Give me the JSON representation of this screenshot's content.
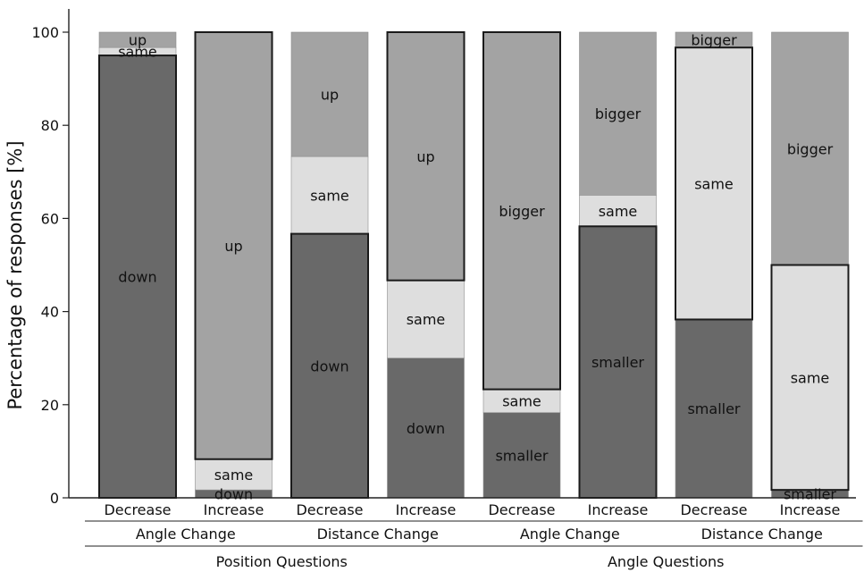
{
  "chart_data": {
    "type": "bar",
    "stacked": true,
    "ylabel": "Percentage of responses [%]",
    "ylim": [
      0,
      100
    ],
    "yticks": [
      0,
      20,
      40,
      60,
      80,
      100
    ],
    "colors": {
      "dark": "#696969",
      "light": "#dedede",
      "mid": "#a3a3a3"
    },
    "bars": [
      {
        "label": "Decrease",
        "segments": [
          {
            "label": "down",
            "value": 95.0,
            "color": "dark"
          },
          {
            "label": "same",
            "value": 1.7,
            "color": "light"
          },
          {
            "label": "up",
            "value": 3.3,
            "color": "mid"
          }
        ],
        "highlight": [
          0,
          95.0
        ]
      },
      {
        "label": "Increase",
        "segments": [
          {
            "label": "down",
            "value": 1.7,
            "color": "dark"
          },
          {
            "label": "same",
            "value": 6.6,
            "color": "light"
          },
          {
            "label": "up",
            "value": 91.7,
            "color": "mid"
          }
        ],
        "highlight": [
          8.3,
          100
        ]
      },
      {
        "label": "Decrease",
        "segments": [
          {
            "label": "down",
            "value": 56.7,
            "color": "dark"
          },
          {
            "label": "same",
            "value": 16.6,
            "color": "light"
          },
          {
            "label": "up",
            "value": 26.7,
            "color": "mid"
          }
        ],
        "highlight": [
          0,
          56.7
        ]
      },
      {
        "label": "Increase",
        "segments": [
          {
            "label": "down",
            "value": 30.0,
            "color": "dark"
          },
          {
            "label": "same",
            "value": 16.7,
            "color": "light"
          },
          {
            "label": "up",
            "value": 53.3,
            "color": "mid"
          }
        ],
        "highlight": [
          46.7,
          100
        ]
      },
      {
        "label": "Decrease",
        "segments": [
          {
            "label": "smaller",
            "value": 18.3,
            "color": "dark"
          },
          {
            "label": "same",
            "value": 5.0,
            "color": "light"
          },
          {
            "label": "bigger",
            "value": 76.7,
            "color": "mid"
          }
        ],
        "highlight": [
          23.3,
          100
        ]
      },
      {
        "label": "Increase",
        "segments": [
          {
            "label": "smaller",
            "value": 58.3,
            "color": "dark"
          },
          {
            "label": "same",
            "value": 6.7,
            "color": "light"
          },
          {
            "label": "bigger",
            "value": 35.0,
            "color": "mid"
          }
        ],
        "highlight": [
          0,
          58.3
        ]
      },
      {
        "label": "Decrease",
        "segments": [
          {
            "label": "smaller",
            "value": 38.3,
            "color": "dark"
          },
          {
            "label": "same",
            "value": 58.4,
            "color": "light"
          },
          {
            "label": "bigger",
            "value": 3.3,
            "color": "mid"
          }
        ],
        "highlight": [
          38.3,
          96.7
        ]
      },
      {
        "label": "Increase",
        "segments": [
          {
            "label": "smaller",
            "value": 1.7,
            "color": "dark"
          },
          {
            "label": "same",
            "value": 48.3,
            "color": "light"
          },
          {
            "label": "bigger",
            "value": 50.0,
            "color": "mid"
          }
        ],
        "highlight": [
          1.7,
          50.0
        ]
      }
    ],
    "groups": [
      {
        "label": "Angle Change",
        "span": [
          0,
          1
        ]
      },
      {
        "label": "Distance Change",
        "span": [
          2,
          3
        ]
      },
      {
        "label": "Angle Change",
        "span": [
          4,
          5
        ]
      },
      {
        "label": "Distance Change",
        "span": [
          6,
          7
        ]
      }
    ],
    "supergroups": [
      {
        "label": "Position Questions",
        "span": [
          0,
          3
        ]
      },
      {
        "label": "Angle Questions",
        "span": [
          4,
          7
        ]
      }
    ]
  }
}
